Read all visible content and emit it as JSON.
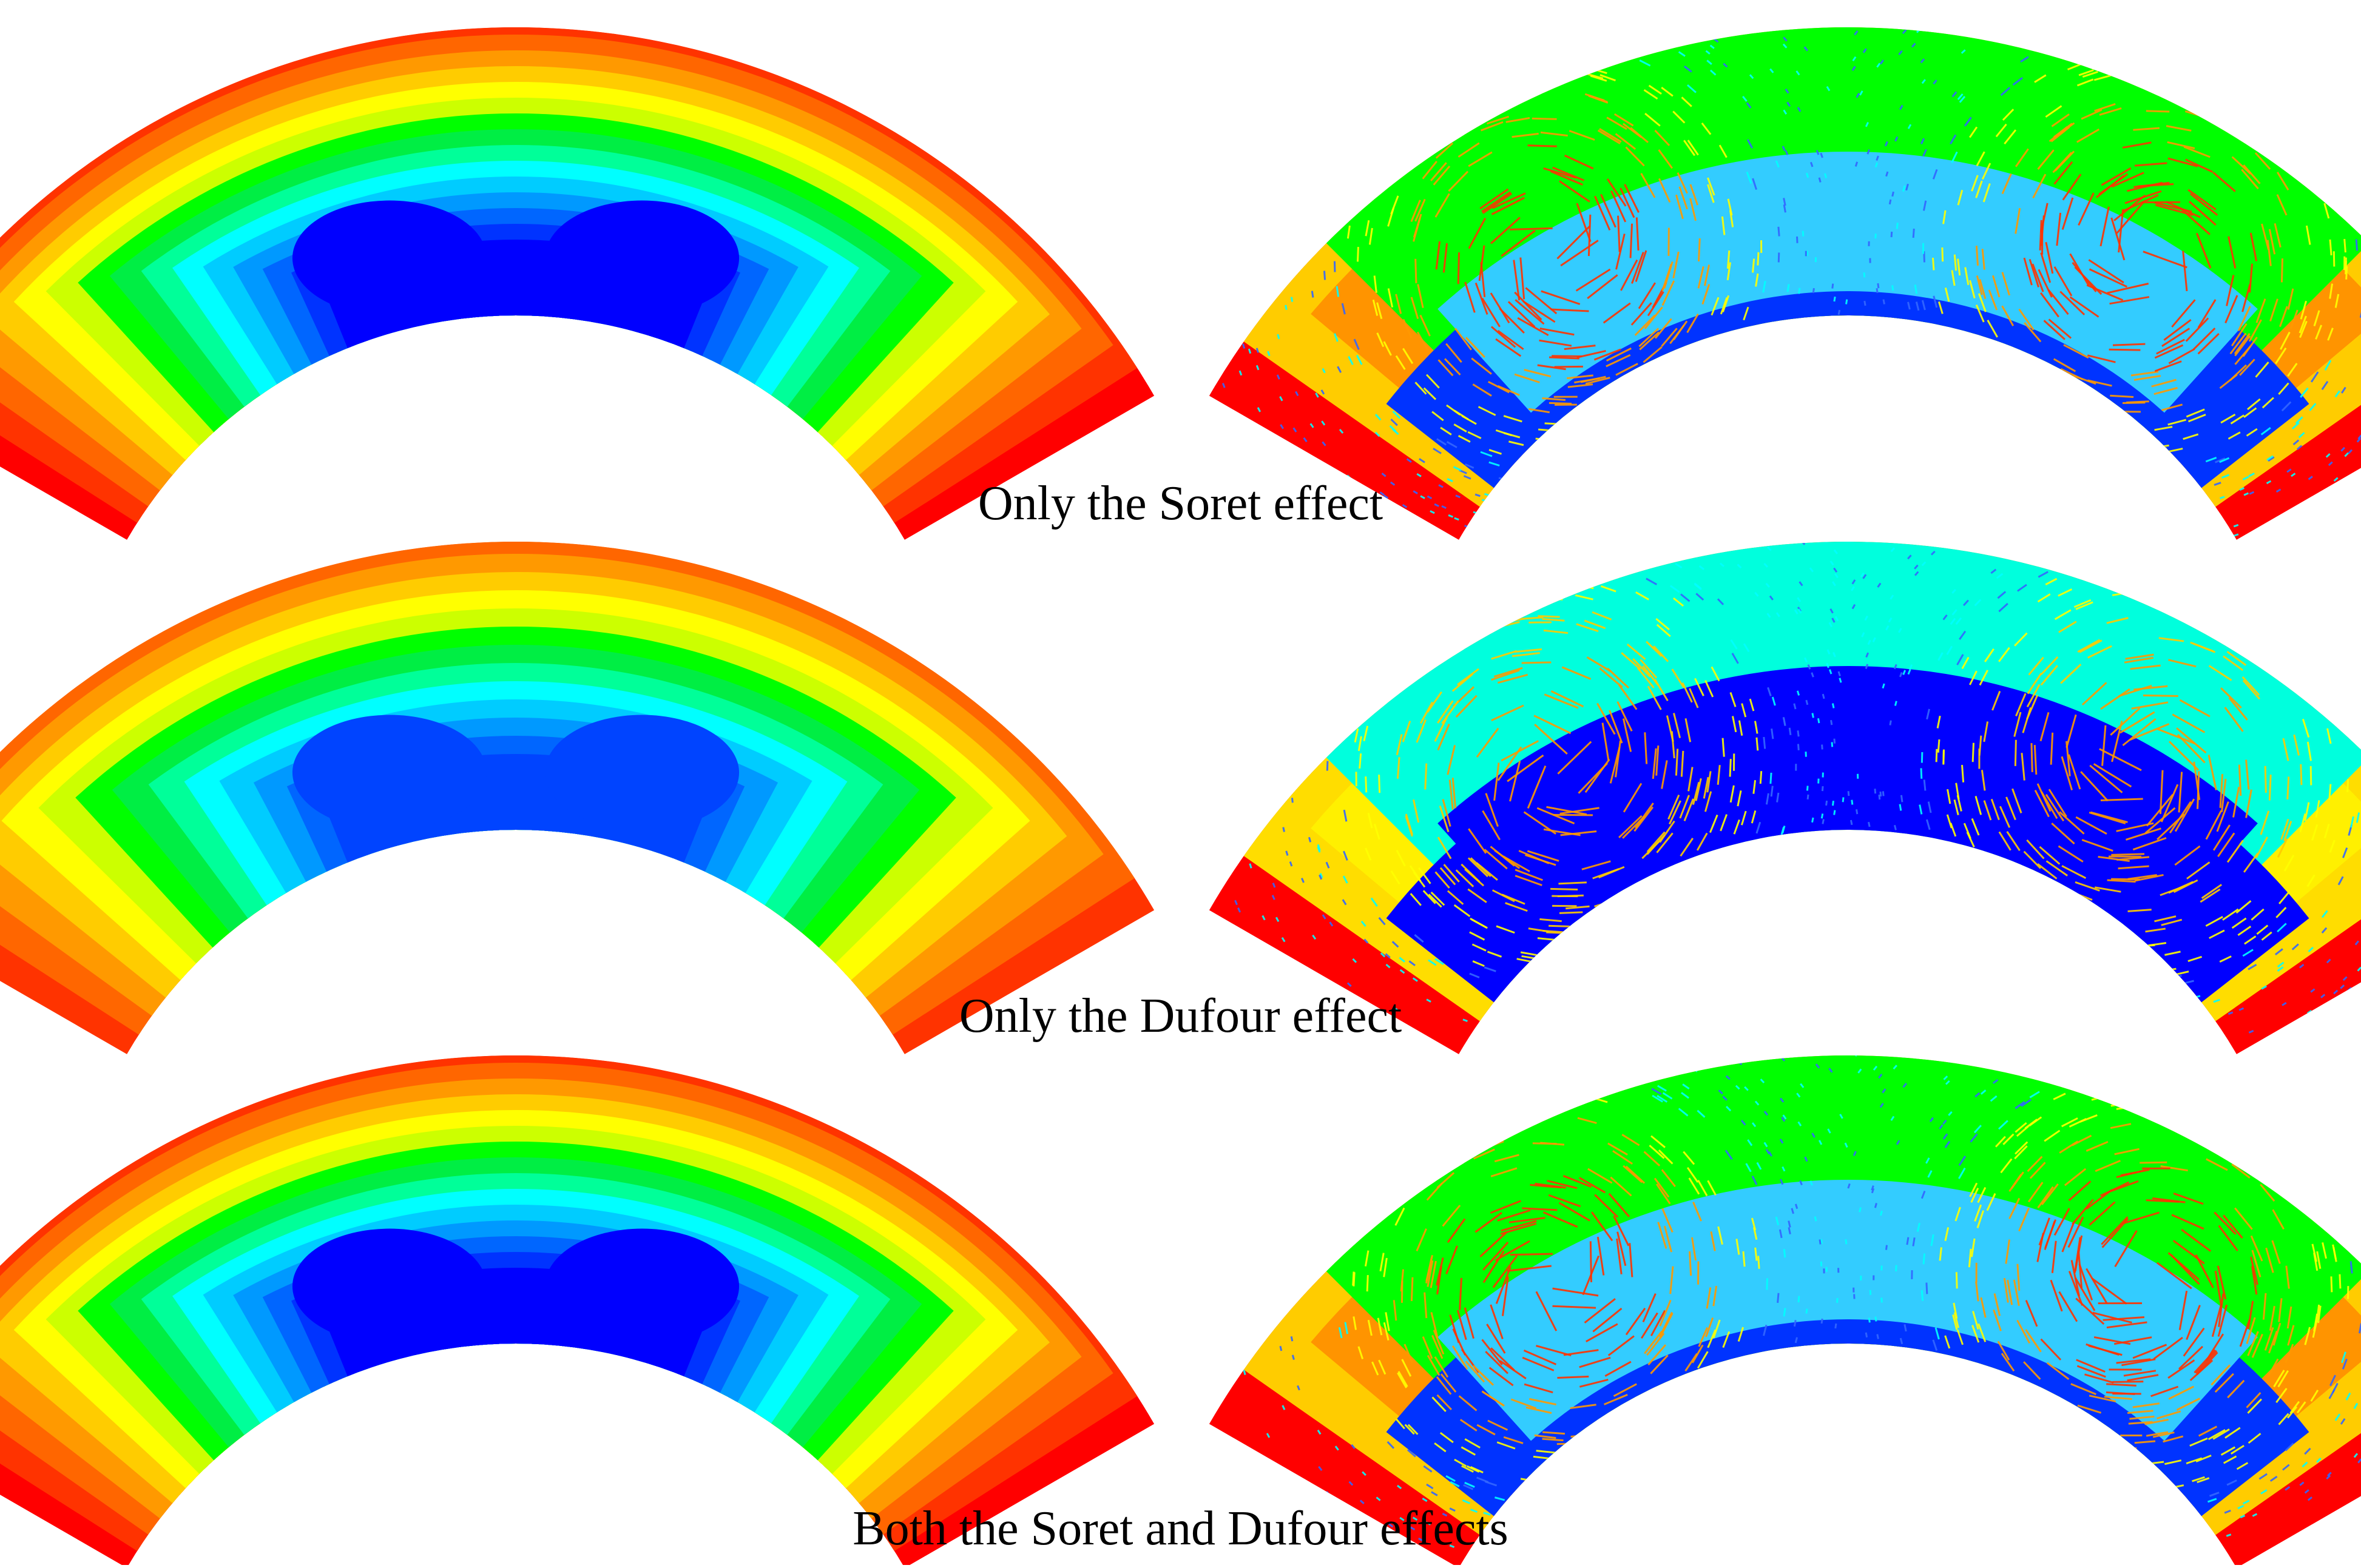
{
  "rows": [
    {
      "caption": "Only the Soret effect",
      "contour_bands": [
        "#ff0000",
        "#ff3300",
        "#ff6600",
        "#ff9900",
        "#ffcc00",
        "#ffff00",
        "#ccff00",
        "#00ff00",
        "#00ee44",
        "#00ff99",
        "#00ffff",
        "#00ccff",
        "#0099ff",
        "#0066ff",
        "#0033ff",
        "#0000ff"
      ],
      "vector_field": {
        "outer_zone": "#00ff00",
        "inner_zone": "#33ccff",
        "inner_bottom": "#0033ff",
        "side_zone_outer": "#ffcc00",
        "side_zone_inner": "#ff6600",
        "edge": "#ff0000",
        "arrow_colors": [
          "#ff3300",
          "#ff9900",
          "#ffff00",
          "#00ffff",
          "#3366ff"
        ]
      }
    },
    {
      "caption": "Only the Dufour effect",
      "contour_bands": [
        "#ff3300",
        "#ff6600",
        "#ff9900",
        "#ffcc00",
        "#ffff00",
        "#ccff00",
        "#00ff00",
        "#00ee44",
        "#00ff99",
        "#00ffff",
        "#00ccff",
        "#0099ff",
        "#0066ff",
        "#0044ff"
      ],
      "vector_field": {
        "outer_zone": "#00ffdd",
        "inner_zone": "#0000ff",
        "inner_bottom": "#0000ff",
        "side_zone_outer": "#ffdd00",
        "side_zone_inner": "#ffff00",
        "edge": "#ff0000",
        "arrow_colors": [
          "#ff9900",
          "#ffcc00",
          "#ffff00",
          "#00ffff",
          "#3366ff"
        ]
      }
    },
    {
      "caption": "Both the Soret and Dufour effects",
      "contour_bands": [
        "#ff0000",
        "#ff3300",
        "#ff6600",
        "#ff9900",
        "#ffcc00",
        "#ffff00",
        "#ccff00",
        "#00ff00",
        "#00ee44",
        "#00ff99",
        "#00ffff",
        "#00ccff",
        "#0099ff",
        "#0066ff",
        "#0033ff",
        "#0000ff"
      ],
      "vector_field": {
        "outer_zone": "#00ff00",
        "inner_zone": "#33ccff",
        "inner_bottom": "#0033ff",
        "side_zone_outer": "#ffcc00",
        "side_zone_inner": "#ff6600",
        "edge": "#ff0000",
        "arrow_colors": [
          "#ff3300",
          "#ff9900",
          "#ffff00",
          "#00ffff",
          "#3366ff"
        ]
      }
    }
  ]
}
